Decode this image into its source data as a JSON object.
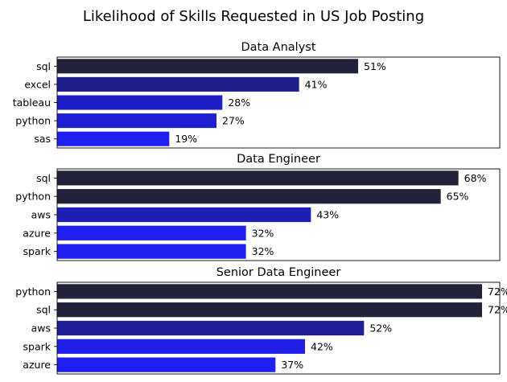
{
  "figure": {
    "title": "Likelihood of Skills Requested in US Job Posting"
  },
  "chart_data": [
    {
      "type": "bar",
      "orientation": "horizontal",
      "title": "Data Analyst",
      "categories": [
        "sql",
        "excel",
        "tableau",
        "python",
        "sas"
      ],
      "values": [
        51,
        41,
        28,
        27,
        19
      ],
      "labels": [
        "51%",
        "41%",
        "28%",
        "27%",
        "19%"
      ],
      "xlim": [
        0,
        75
      ],
      "xlabel": "",
      "ylabel": "",
      "colors": [
        "#22223a",
        "#1f1f8c",
        "#1f1fc7",
        "#1f1fd2",
        "#1f1ff0"
      ]
    },
    {
      "type": "bar",
      "orientation": "horizontal",
      "title": "Data Engineer",
      "categories": [
        "sql",
        "python",
        "aws",
        "azure",
        "spark"
      ],
      "values": [
        68,
        65,
        43,
        32,
        32
      ],
      "labels": [
        "68%",
        "65%",
        "43%",
        "32%",
        "32%"
      ],
      "xlim": [
        0,
        75
      ],
      "xlabel": "",
      "ylabel": "",
      "colors": [
        "#22223a",
        "#22223a",
        "#1f1fb3",
        "#1f1ff0",
        "#1f1ff0"
      ]
    },
    {
      "type": "bar",
      "orientation": "horizontal",
      "title": "Senior Data Engineer",
      "categories": [
        "python",
        "sql",
        "aws",
        "spark",
        "azure"
      ],
      "values": [
        72,
        72,
        52,
        42,
        37
      ],
      "labels": [
        "72%",
        "72%",
        "52%",
        "42%",
        "37%"
      ],
      "xlim": [
        0,
        75
      ],
      "xlabel": "",
      "ylabel": "",
      "colors": [
        "#22223a",
        "#22223a",
        "#1f1f99",
        "#1f1fe6",
        "#1f1ff0"
      ]
    }
  ]
}
